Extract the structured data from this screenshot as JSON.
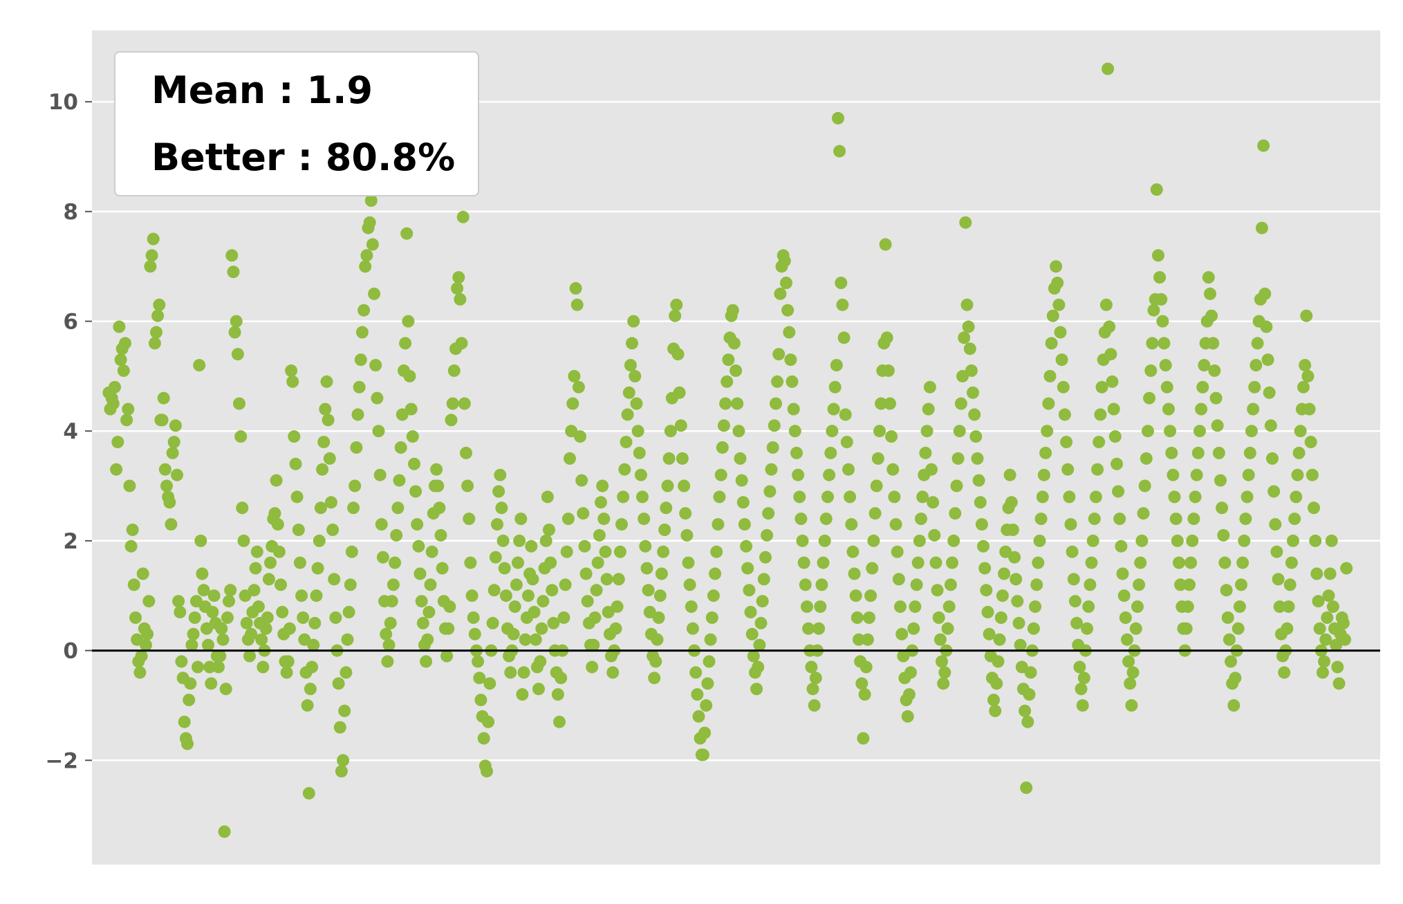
{
  "colors": {
    "plot_background": "#e5e5e5",
    "grid": "#ffffff",
    "points": "#8fbb3e",
    "zero_line": "#000000",
    "tick_text": "#555555"
  },
  "legend": {
    "mean_text": "Mean : 1.9",
    "better_text": "Better : 80.8%"
  },
  "chart_data": {
    "type": "scatter",
    "title": "",
    "xlabel": "",
    "ylabel": "",
    "x_ticks_shown": false,
    "ylim": [
      -3.9,
      11.3
    ],
    "xlim": [
      -30,
      2260
    ],
    "y_ticks": [
      -2,
      0,
      2,
      4,
      6,
      8,
      10
    ],
    "y_tick_labels": [
      "−2",
      "0",
      "2",
      "4",
      "6",
      "8",
      "10"
    ],
    "grid": true,
    "reference_line_y": 0,
    "legend_position": "top-left",
    "annotations": [
      "Mean : 1.9",
      "Better : 80.8%"
    ],
    "series": [
      {
        "values": [
          4.7,
          4.4,
          4.6,
          4.5,
          4.8,
          3.3,
          3.8,
          5.9,
          5.3,
          5.5,
          5.1,
          5.6,
          4.2,
          4.4,
          3.0,
          1.9,
          2.2,
          1.2,
          0.6,
          0.2,
          -0.2,
          -0.4,
          -0.1,
          1.4,
          0.4,
          0.1,
          0.3,
          0.9,
          7.0,
          7.2,
          7.5,
          5.6,
          5.8,
          6.1,
          6.3,
          4.2,
          4.2,
          4.6,
          3.3,
          3.0,
          2.8,
          2.7,
          2.3,
          3.6,
          3.8,
          4.1,
          3.2,
          0.9,
          0.7,
          -0.2,
          -0.5,
          -1.3,
          -1.6,
          -1.7,
          -0.9,
          -0.6,
          0.1,
          0.3,
          0.6,
          0.9,
          -0.3,
          5.2,
          2.0,
          1.4,
          1.1,
          0.8,
          0.4,
          0.1,
          -0.3,
          -0.6,
          0.7,
          1.0,
          0.5,
          -0.1,
          -0.3,
          -0.1,
          0.4,
          0.2,
          -3.3,
          -0.7,
          0.6,
          0.9,
          1.1,
          7.2,
          6.9,
          5.8,
          6.0,
          5.4,
          4.5,
          3.9,
          2.6,
          2.0,
          1.0,
          0.5,
          0.2,
          -0.1,
          0.3,
          0.7,
          1.1,
          1.5,
          1.8,
          0.8,
          0.5,
          0.2,
          -0.3,
          0.0,
          0.4,
          0.6,
          1.3,
          1.6,
          1.9,
          2.4,
          2.5,
          3.1,
          2.3,
          1.8,
          1.2,
          0.7,
          0.3,
          -0.2,
          -0.4,
          -0.2,
          0.4,
          5.1,
          4.9,
          3.9,
          3.4,
          2.8,
          2.2,
          1.6,
          1.0,
          0.6,
          0.2,
          -0.4,
          -1.0,
          -2.6,
          -0.7,
          -0.3,
          0.1,
          0.5,
          1.0,
          1.5,
          2.0,
          2.6,
          3.3,
          3.8,
          4.4,
          4.9,
          4.2,
          3.5,
          2.7,
          2.2,
          1.3,
          0.6,
          0.0,
          -0.6,
          -1.4,
          -2.2,
          -2.0,
          -1.1,
          -0.4,
          0.2,
          0.7,
          1.2,
          1.8,
          2.6,
          3.0,
          3.7,
          4.3,
          4.8,
          5.3,
          5.8,
          6.2,
          7.0,
          7.2,
          7.7,
          7.8,
          8.2,
          7.4,
          6.5,
          5.2,
          4.6,
          4.0,
          3.2,
          2.3,
          1.7,
          0.9,
          0.3,
          -0.2,
          0.1,
          0.5,
          0.9,
          1.2,
          1.6,
          2.1,
          2.6,
          3.1,
          3.7,
          4.3,
          5.1,
          5.6,
          7.6,
          6.0,
          5.0,
          4.4,
          3.9,
          3.4,
          2.9,
          2.3,
          1.9,
          1.4,
          0.9,
          0.5,
          0.1,
          -0.2,
          0.2,
          0.7,
          1.2,
          1.8,
          2.5,
          3.0,
          3.3,
          3.0,
          2.6,
          2.1,
          1.5,
          0.9,
          0.4,
          -0.1,
          0.4,
          0.8,
          4.2,
          4.5,
          5.1,
          5.5,
          6.6,
          6.8,
          6.4,
          5.6,
          7.9,
          4.5,
          3.6,
          3.0,
          2.4,
          1.6,
          1.0,
          0.6,
          0.3,
          0.0,
          -0.2,
          -0.5,
          -0.9,
          -1.2,
          -1.6,
          -2.1,
          -2.2,
          -1.3,
          -0.6,
          0.0,
          0.5,
          1.1,
          1.7,
          2.3,
          2.9,
          3.2,
          2.6,
          2.0,
          1.5,
          1.0,
          0.4,
          -0.1,
          -0.4,
          0.0,
          0.3,
          0.8,
          1.2,
          1.6,
          2.0,
          2.4,
          -0.8,
          -0.4,
          0.2,
          0.6,
          1.0,
          1.4,
          1.9,
          1.3,
          0.7,
          0.2,
          -0.3,
          -0.7,
          -0.2,
          0.4,
          0.9,
          1.5,
          2.0,
          2.8,
          2.2,
          1.6,
          1.1,
          0.5,
          0.0,
          -0.4,
          -0.8,
          -1.3,
          -0.5,
          0.0,
          0.6,
          1.2,
          1.8,
          2.4,
          3.5,
          4.0,
          4.5,
          5.0,
          6.6,
          6.3,
          4.8,
          3.9,
          3.1,
          2.5,
          1.9,
          1.4,
          0.9,
          0.5,
          0.1,
          -0.3,
          0.1,
          0.6,
          1.1,
          1.6,
          2.1,
          2.7,
          3.0,
          2.4,
          1.8,
          1.3,
          0.7,
          0.3,
          -0.1,
          -0.4,
          0.0,
          0.4,
          0.8,
          1.3,
          1.8,
          2.3,
          2.8,
          3.3,
          3.8,
          4.3,
          4.7,
          5.2,
          5.6,
          6.0,
          5.0,
          4.5,
          4.0,
          3.6,
          3.2,
          2.8,
          2.4,
          1.9,
          1.5,
          1.1,
          0.7,
          0.3,
          -0.1,
          -0.5,
          -0.2,
          0.2,
          0.6,
          1.0,
          1.4,
          1.8,
          2.2,
          2.6,
          3.0,
          3.5,
          4.0,
          4.6,
          5.5,
          6.1,
          6.3,
          5.4,
          4.7,
          4.1,
          3.5,
          3.0,
          2.5,
          2.1,
          1.6,
          1.2,
          0.8,
          0.4,
          0.0,
          -0.4,
          -0.8,
          -1.2,
          -1.6,
          -1.9,
          -1.9,
          -1.5,
          -1.0,
          -0.6,
          -0.2,
          0.2,
          0.6,
          1.0,
          1.4,
          1.8,
          2.3,
          2.8,
          3.2,
          3.7,
          4.1,
          4.5,
          4.9,
          5.3,
          5.7,
          6.1,
          6.2,
          5.6,
          5.1,
          4.5,
          4.0,
          3.5,
          3.1,
          2.7,
          2.3,
          1.9,
          1.5,
          1.1,
          0.7,
          0.3,
          -0.1,
          -0.4,
          -0.7,
          -0.3,
          0.1,
          0.5,
          0.9,
          1.3,
          1.7,
          2.1,
          2.5,
          2.9,
          3.3,
          3.7,
          4.1,
          4.5,
          4.9,
          5.4,
          6.5,
          7.0,
          7.2,
          7.1,
          6.7,
          6.2,
          5.8,
          5.3,
          4.9,
          4.4,
          4.0,
          3.6,
          3.2,
          2.8,
          2.4,
          2.0,
          1.6,
          1.2,
          0.8,
          0.4,
          0.0,
          -0.3,
          -0.7,
          -1.0,
          -0.5,
          0.0,
          0.4,
          0.8,
          1.2,
          1.6,
          2.0,
          2.4,
          2.8,
          3.2,
          3.6,
          4.0,
          4.4,
          4.8,
          5.2,
          9.7,
          9.1,
          6.7,
          6.3,
          5.7,
          4.3,
          3.8,
          3.3,
          2.8,
          2.3,
          1.8,
          1.4,
          1.0,
          0.6,
          0.2,
          -0.2,
          -0.6,
          -1.6,
          -0.8,
          -0.3,
          0.2,
          0.6,
          1.0,
          1.5,
          2.0,
          2.5,
          3.0,
          3.5,
          4.0,
          4.5,
          5.1,
          5.6,
          7.4,
          5.7,
          5.1,
          4.5,
          3.9,
          3.3,
          2.8,
          2.3,
          1.8,
          1.3,
          0.8,
          0.3,
          -0.1,
          -0.5,
          -0.9,
          -1.2,
          -0.8,
          -0.4,
          0.0,
          0.4,
          0.8,
          1.2,
          1.6,
          2.0,
          2.4,
          2.8,
          3.2,
          3.6,
          4.0,
          4.4,
          4.8,
          3.3,
          2.7,
          2.1,
          1.6,
          1.1,
          0.6,
          0.2,
          -0.2,
          -0.6,
          -0.4,
          0.0,
          0.4,
          0.8,
          1.2,
          1.6,
          2.0,
          2.5,
          3.0,
          3.5,
          4.0,
          4.5,
          5.0,
          5.7,
          7.8,
          6.3,
          5.9,
          5.5,
          5.1,
          4.7,
          4.3,
          3.9,
          3.5,
          3.1,
          2.7,
          2.3,
          1.9,
          1.5,
          1.1,
          0.7,
          0.3,
          -0.1,
          -0.5,
          -0.9,
          -1.1,
          -0.6,
          -0.2,
          0.2,
          0.6,
          1.0,
          1.4,
          1.8,
          2.2,
          2.6,
          3.2,
          2.7,
          2.2,
          1.7,
          1.3,
          0.9,
          0.5,
          0.1,
          -0.3,
          -0.7,
          -1.1,
          -2.5,
          -1.3,
          -0.8,
          -0.4,
          0.0,
          0.4,
          0.8,
          1.2,
          1.6,
          2.0,
          2.4,
          2.8,
          3.2,
          3.6,
          4.0,
          4.5,
          5.0,
          5.6,
          6.1,
          6.6,
          7.0,
          6.7,
          6.3,
          5.8,
          5.3,
          4.8,
          4.3,
          3.8,
          3.3,
          2.8,
          2.3,
          1.8,
          1.3,
          0.9,
          0.5,
          0.1,
          -0.3,
          -0.7,
          -1.0,
          -0.5,
          0.0,
          0.4,
          0.8,
          1.2,
          1.6,
          2.0,
          2.4,
          2.8,
          3.3,
          3.8,
          4.3,
          4.8,
          5.3,
          5.8,
          6.3,
          10.6,
          5.9,
          5.4,
          4.9,
          4.4,
          3.9,
          3.4,
          2.9,
          2.4,
          1.9,
          1.4,
          1.0,
          0.6,
          0.2,
          -0.2,
          -0.6,
          -1.0,
          -0.4,
          0.0,
          0.4,
          0.8,
          1.2,
          1.6,
          2.0,
          2.5,
          3.0,
          3.5,
          4.0,
          4.6,
          5.1,
          5.6,
          6.2,
          6.4,
          8.4,
          7.2,
          6.8,
          6.4,
          6.0,
          5.6,
          5.2,
          4.8,
          4.4,
          4.0,
          3.6,
          3.2,
          2.8,
          2.4,
          2.0,
          1.6,
          1.2,
          0.8,
          0.4,
          0.0,
          0.4,
          0.8,
          1.2,
          1.6,
          2.0,
          2.4,
          2.8,
          3.2,
          3.6,
          4.0,
          4.4,
          4.8,
          5.2,
          5.6,
          6.0,
          6.8,
          6.5,
          6.1,
          5.6,
          5.1,
          4.6,
          4.1,
          3.6,
          3.1,
          2.6,
          2.1,
          1.6,
          1.1,
          0.6,
          0.2,
          -0.2,
          -0.6,
          -1.0,
          -0.5,
          0.0,
          0.4,
          0.8,
          1.2,
          1.6,
          2.0,
          2.4,
          2.8,
          3.2,
          3.6,
          4.0,
          4.4,
          4.8,
          5.2,
          5.6,
          6.0,
          6.4,
          7.7,
          9.2,
          6.5,
          5.9,
          5.3,
          4.7,
          4.1,
          3.5,
          2.9,
          2.3,
          1.8,
          1.3,
          0.8,
          0.3,
          -0.1,
          -0.4,
          0.0,
          0.4,
          0.8,
          1.2,
          1.6,
          2.0,
          2.4,
          2.8,
          3.2,
          3.6,
          4.0,
          4.4,
          4.8,
          5.2,
          6.1,
          5.0,
          4.4,
          3.8,
          3.2,
          2.6,
          2.0,
          1.4,
          0.9,
          0.4,
          0.0,
          -0.4,
          -0.2,
          0.2,
          0.6,
          1.0,
          1.4,
          2.0,
          0.8,
          0.4,
          0.1,
          -0.3,
          -0.6,
          0.3,
          0.6,
          0.5,
          0.2,
          1.5
        ],
        "x_index_note": "points spread uniformly across the x range in order"
      }
    ]
  }
}
